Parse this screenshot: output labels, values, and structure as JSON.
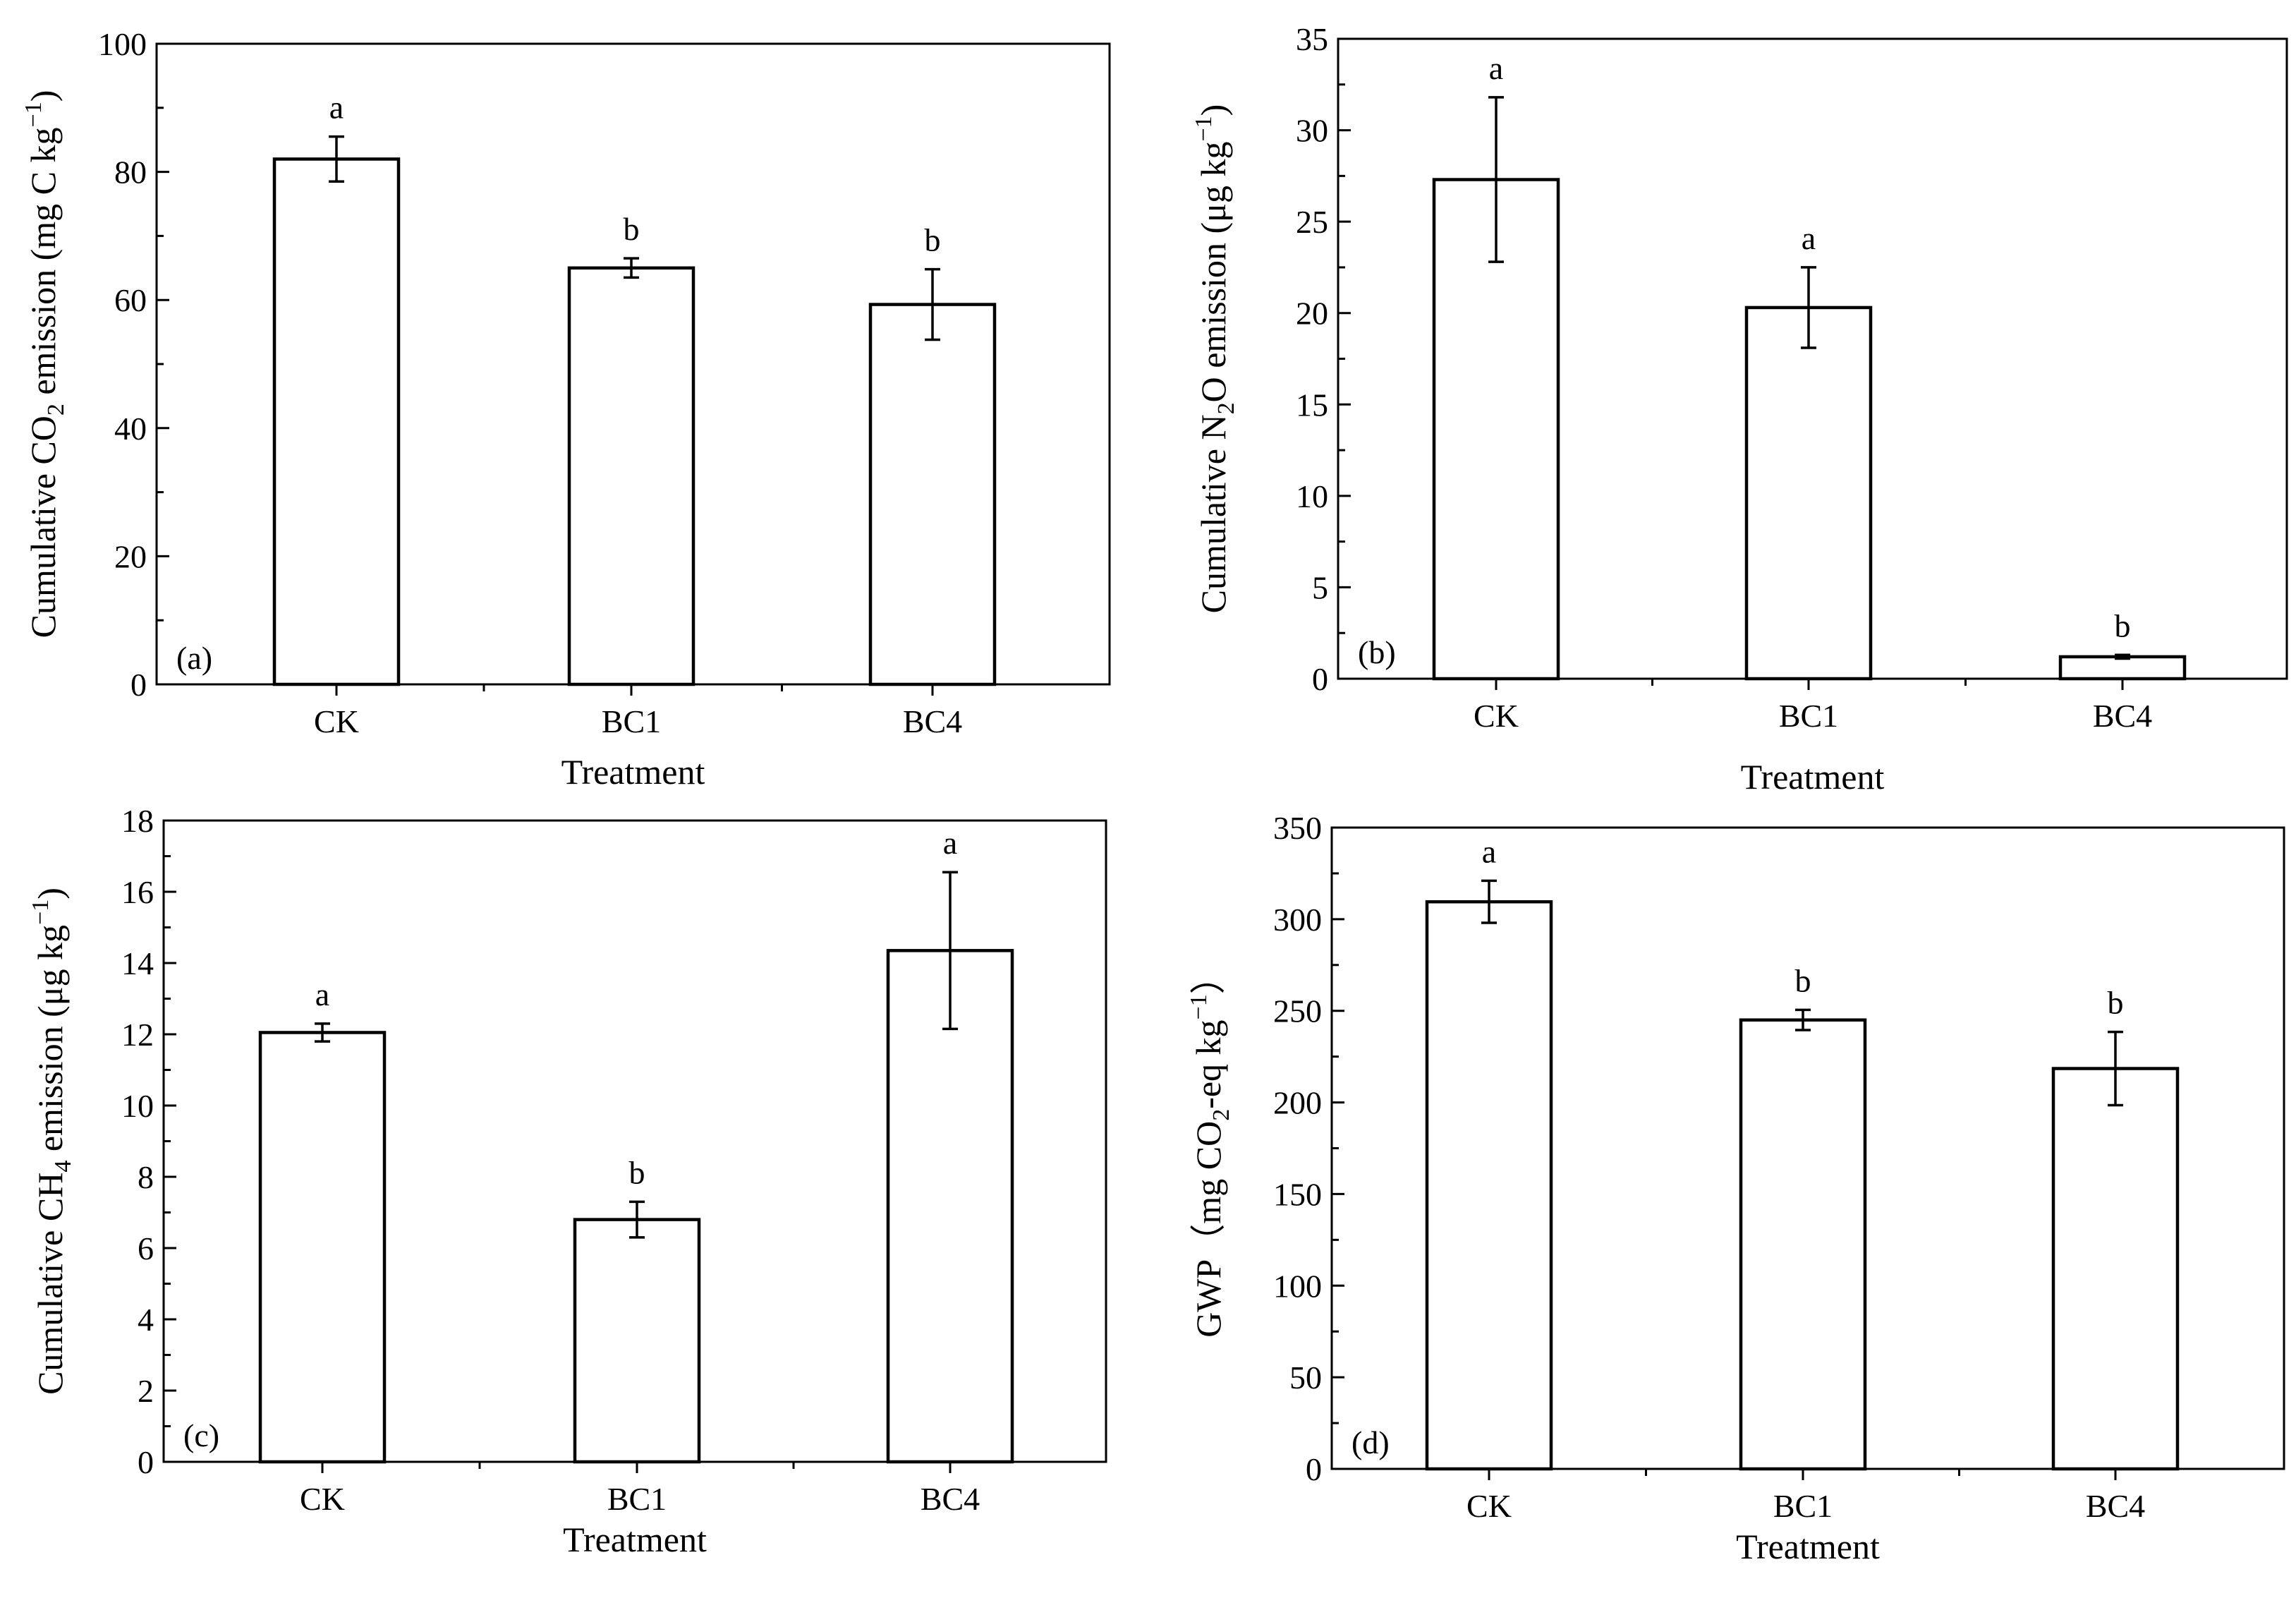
{
  "chart_data": [
    {
      "panel": "(a)",
      "type": "bar",
      "categories": [
        "CK",
        "BC1",
        "BC4"
      ],
      "values": [
        82,
        65,
        59.3
      ],
      "errors": [
        3.5,
        1.5,
        5.5
      ],
      "letters": [
        "a",
        "b",
        "b"
      ],
      "xlabel": "Treatment",
      "ylabel": {
        "prefix": "Cumulative CO",
        "sub": "2",
        "mid": " emission (mg C kg",
        "sup": "−1",
        "suffix": ")"
      },
      "ylim": [
        0,
        100
      ],
      "yticks": [
        0,
        20,
        40,
        60,
        80,
        100
      ],
      "ytick_labels": [
        "0",
        "20",
        "40",
        "60",
        "80",
        "100"
      ],
      "minor_step": 10
    },
    {
      "panel": "(b)",
      "type": "bar",
      "categories": [
        "CK",
        "BC1",
        "BC4"
      ],
      "values": [
        27.3,
        20.3,
        1.2
      ],
      "errors": [
        4.5,
        2.2,
        0.1
      ],
      "letters": [
        "a",
        "a",
        "b"
      ],
      "xlabel": "Treatment",
      "ylabel": {
        "prefix": "Cumulative N",
        "sub": "2",
        "mid": "O emission (μg kg",
        "sup": "−1",
        "suffix": ")"
      },
      "ylim": [
        0,
        35
      ],
      "yticks": [
        0,
        5,
        10,
        15,
        20,
        25,
        30,
        35
      ],
      "ytick_labels": [
        "0",
        "5",
        "10",
        "15",
        "20",
        "25",
        "30",
        "35"
      ],
      "minor_step": 2.5
    },
    {
      "panel": "(c)",
      "type": "bar",
      "categories": [
        "CK",
        "BC1",
        "BC4"
      ],
      "values": [
        12.05,
        6.8,
        14.35
      ],
      "errors": [
        0.25,
        0.5,
        2.2
      ],
      "letters": [
        "a",
        "b",
        "a"
      ],
      "xlabel": "Treatment",
      "ylabel": {
        "prefix": "Cumulative CH",
        "sub": "4",
        "mid": " emission (μg kg",
        "sup": "−1",
        "suffix": ")"
      },
      "ylim": [
        0,
        18
      ],
      "yticks": [
        0,
        2,
        4,
        6,
        8,
        10,
        12,
        14,
        16,
        18
      ],
      "ytick_labels": [
        "0",
        "2",
        "4",
        "6",
        "8",
        "10",
        "12",
        "14",
        "16",
        "18"
      ],
      "minor_step": 1
    },
    {
      "panel": "(d)",
      "type": "bar",
      "categories": [
        "CK",
        "BC1",
        "BC4"
      ],
      "values": [
        309.5,
        245,
        218.5
      ],
      "errors": [
        11.5,
        5.5,
        20
      ],
      "letters": [
        "a",
        "b",
        "b"
      ],
      "xlabel": "Treatment",
      "ylabel": {
        "prefix": "GWP（mg CO",
        "sub": "2",
        "mid": "-eq kg",
        "sup": "−1",
        "suffix": "）"
      },
      "ylim": [
        0,
        350
      ],
      "yticks": [
        0,
        50,
        100,
        150,
        200,
        250,
        300,
        350
      ],
      "ytick_labels": [
        "0",
        "50",
        "100",
        "150",
        "200",
        "250",
        "300",
        "350"
      ],
      "minor_step": 25
    }
  ]
}
